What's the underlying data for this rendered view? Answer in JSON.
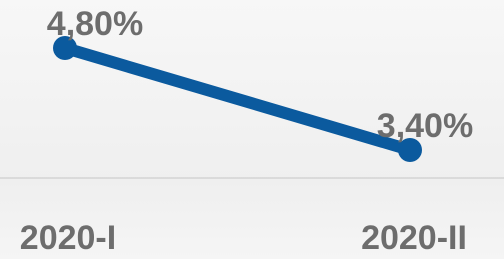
{
  "chart_data": {
    "type": "line",
    "categories": [
      "2020-I",
      "2020-II"
    ],
    "series": [
      {
        "color": "#0b5a9e",
        "values": [
          4.8,
          3.4
        ],
        "value_labels": [
          "4,80%",
          "3,40%"
        ]
      }
    ]
  }
}
